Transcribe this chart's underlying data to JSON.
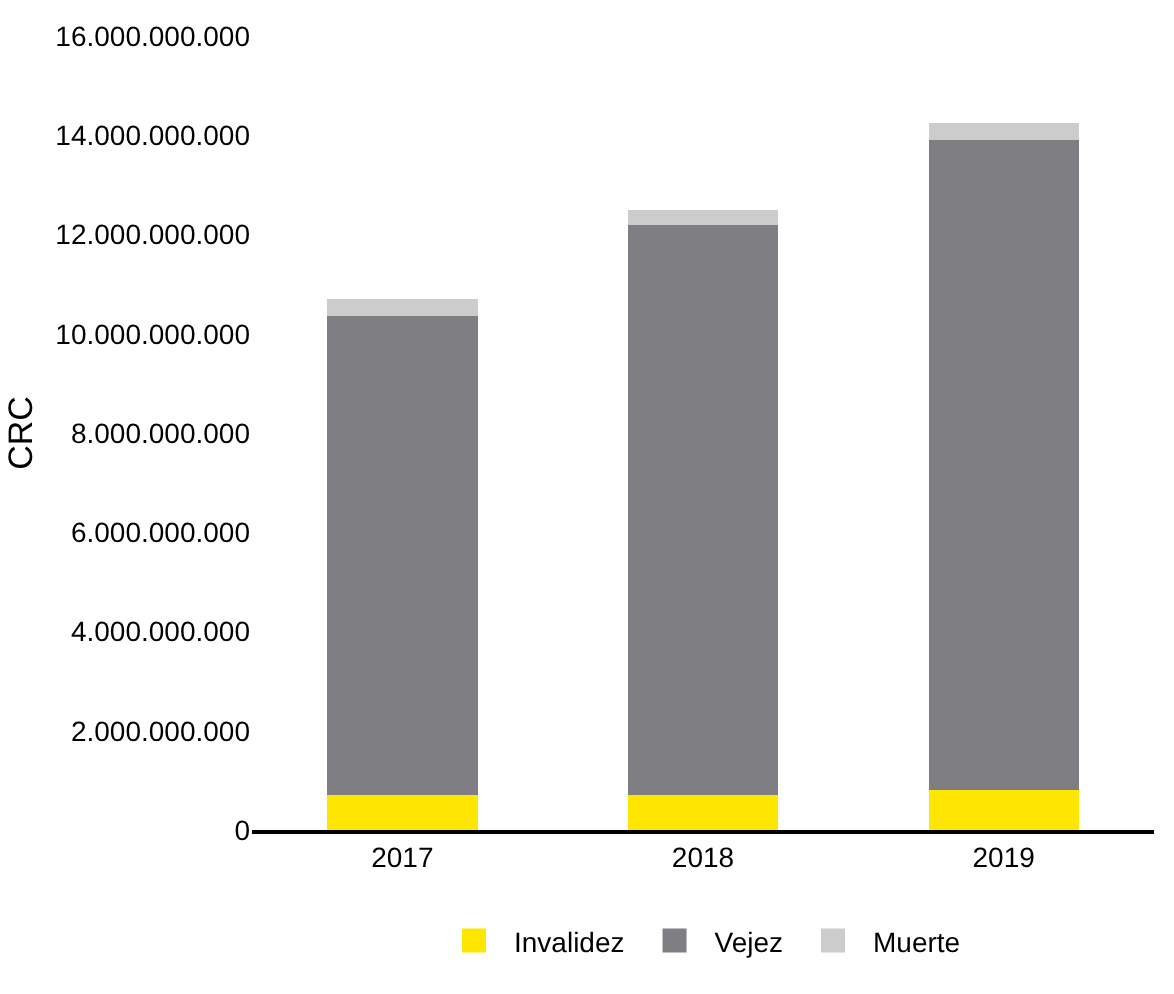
{
  "chart_data": {
    "type": "bar",
    "stacked": true,
    "ylabel": "CRC",
    "categories": [
      "2017",
      "2018",
      "2019"
    ],
    "series": [
      {
        "name": "Invalidez",
        "color": "#ffe600",
        "values": [
          700000000,
          700000000,
          800000000
        ]
      },
      {
        "name": "Vejez",
        "color": "#7f7e82",
        "values": [
          9650000000,
          11500000000,
          13100000000
        ]
      },
      {
        "name": "Muerte",
        "color": "#cccccc",
        "values": [
          350000000,
          300000000,
          350000000
        ]
      }
    ],
    "ylim": [
      0,
      16000000000
    ],
    "yticks": [
      {
        "value": 0,
        "label": "0"
      },
      {
        "value": 2000000000,
        "label": "2.000.000.000"
      },
      {
        "value": 4000000000,
        "label": "4.000.000.000"
      },
      {
        "value": 6000000000,
        "label": "6.000.000.000"
      },
      {
        "value": 8000000000,
        "label": "8.000.000.000"
      },
      {
        "value": 10000000000,
        "label": "10.000.000.000"
      },
      {
        "value": 12000000000,
        "label": "12.000.000.000"
      },
      {
        "value": 14000000000,
        "label": "14.000.000.000"
      },
      {
        "value": 16000000000,
        "label": "16.000.000.000"
      }
    ],
    "legend": "bottom"
  }
}
